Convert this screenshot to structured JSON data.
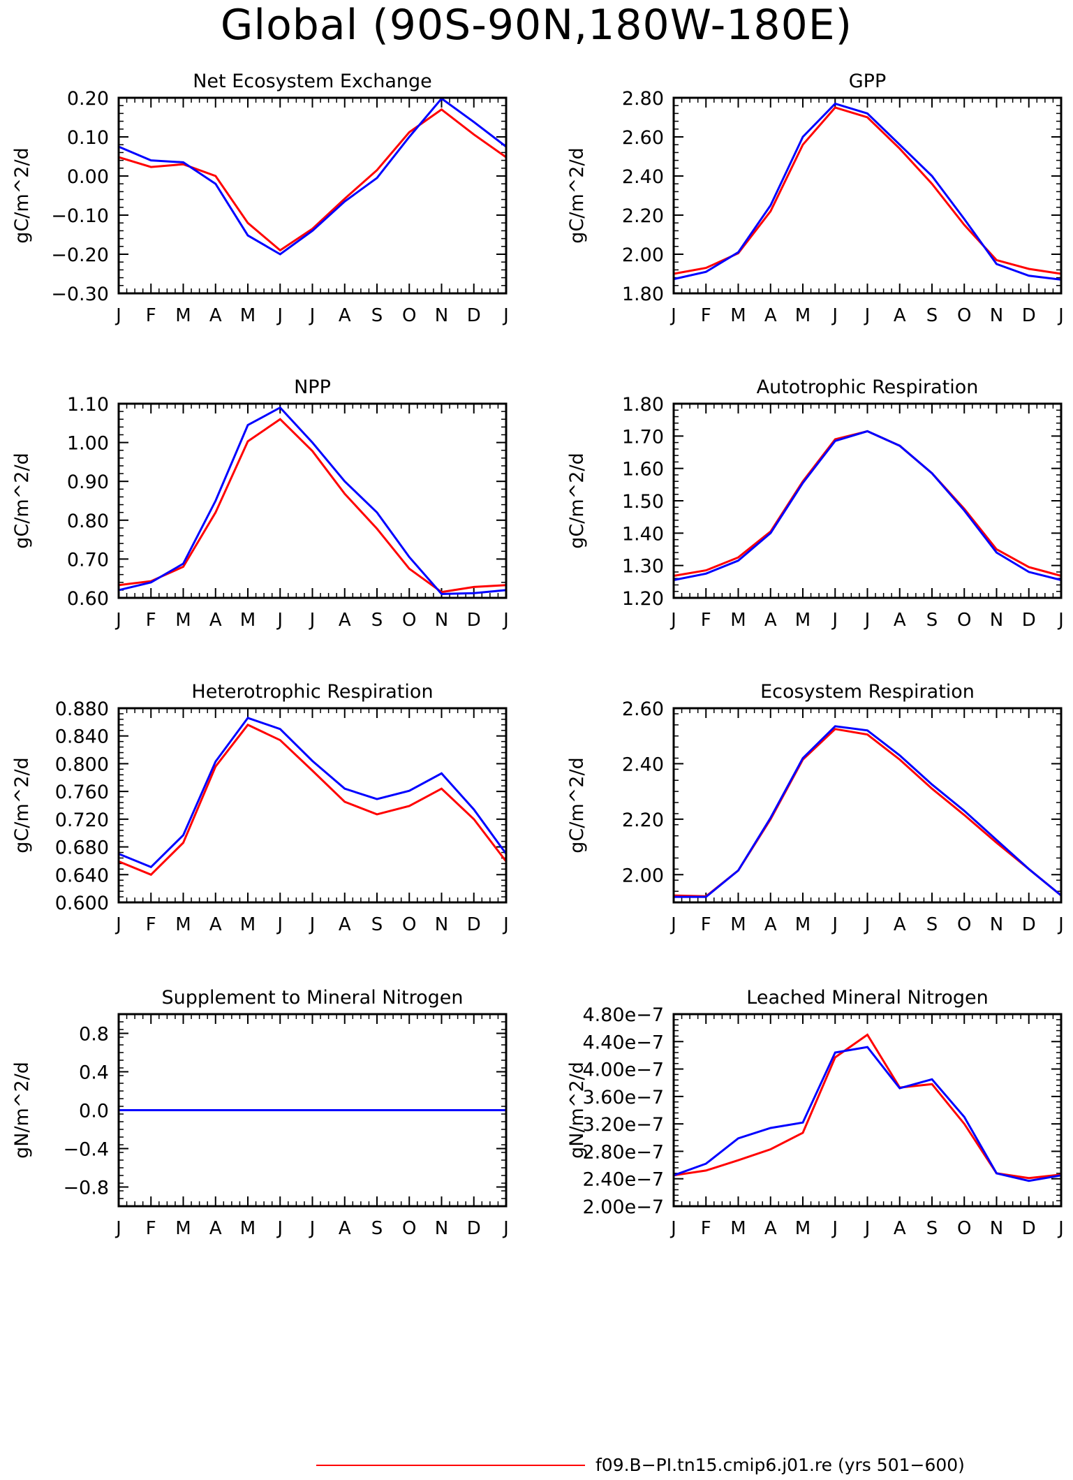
{
  "page": {
    "title": "Global (90S-90N,180W-180E)"
  },
  "legend": [
    {
      "label": "f09.B-PI.tn15.cmip6.j01.re (yrs 501-600)",
      "color": "#ff0000"
    }
  ],
  "colors": {
    "series_a": "#ff0000",
    "series_b": "#0000ff"
  },
  "chart_data": [
    {
      "type": "line",
      "title": "Net Ecosystem Exchange",
      "ylabel": "gC/m^2/d",
      "categories": [
        "J",
        "F",
        "M",
        "A",
        "M",
        "J",
        "J",
        "A",
        "S",
        "O",
        "N",
        "D",
        "J"
      ],
      "ylim": [
        -0.3,
        0.2
      ],
      "yticks": [
        {
          "v": -0.3,
          "label": "-0.30"
        },
        {
          "v": -0.2,
          "label": "-0.20"
        },
        {
          "v": -0.1,
          "label": "-0.10"
        },
        {
          "v": 0.0,
          "label": "0.00"
        },
        {
          "v": 0.1,
          "label": "0.10"
        },
        {
          "v": 0.2,
          "label": "0.20"
        }
      ],
      "series": [
        {
          "values": [
            0.048,
            0.023,
            0.03,
            0.0,
            -0.12,
            -0.19,
            -0.135,
            -0.058,
            0.015,
            0.112,
            0.17,
            0.106,
            0.048
          ]
        },
        {
          "values": [
            0.075,
            0.04,
            0.035,
            -0.02,
            -0.152,
            -0.2,
            -0.14,
            -0.065,
            -0.005,
            0.1,
            0.198,
            0.138,
            0.075
          ]
        }
      ]
    },
    {
      "type": "line",
      "title": "GPP",
      "ylabel": "gC/m^2/d",
      "categories": [
        "J",
        "F",
        "M",
        "A",
        "M",
        "J",
        "J",
        "A",
        "S",
        "O",
        "N",
        "D",
        "J"
      ],
      "ylim": [
        1.8,
        2.8
      ],
      "yticks": [
        {
          "v": 1.8,
          "label": "1.80"
        },
        {
          "v": 2.0,
          "label": "2.00"
        },
        {
          "v": 2.2,
          "label": "2.20"
        },
        {
          "v": 2.4,
          "label": "2.40"
        },
        {
          "v": 2.6,
          "label": "2.60"
        },
        {
          "v": 2.8,
          "label": "2.80"
        }
      ],
      "series": [
        {
          "values": [
            1.9,
            1.93,
            2.005,
            2.22,
            2.56,
            2.75,
            2.7,
            2.54,
            2.36,
            2.15,
            1.97,
            1.925,
            1.9
          ]
        },
        {
          "values": [
            1.873,
            1.91,
            2.01,
            2.25,
            2.6,
            2.77,
            2.72,
            2.56,
            2.4,
            2.18,
            1.95,
            1.89,
            1.87
          ]
        }
      ]
    },
    {
      "type": "line",
      "title": "NPP",
      "ylabel": "gC/m^2/d",
      "categories": [
        "J",
        "F",
        "M",
        "A",
        "M",
        "J",
        "J",
        "A",
        "S",
        "O",
        "N",
        "D",
        "J"
      ],
      "ylim": [
        0.6,
        1.1
      ],
      "yticks": [
        {
          "v": 0.6,
          "label": "0.60"
        },
        {
          "v": 0.7,
          "label": "0.70"
        },
        {
          "v": 0.8,
          "label": "0.80"
        },
        {
          "v": 0.9,
          "label": "0.90"
        },
        {
          "v": 1.0,
          "label": "1.00"
        },
        {
          "v": 1.1,
          "label": "1.10"
        }
      ],
      "series": [
        {
          "values": [
            0.633,
            0.643,
            0.68,
            0.82,
            1.003,
            1.06,
            0.978,
            0.868,
            0.778,
            0.675,
            0.615,
            0.628,
            0.633
          ]
        },
        {
          "values": [
            0.62,
            0.64,
            0.688,
            0.85,
            1.045,
            1.09,
            1.0,
            0.9,
            0.82,
            0.705,
            0.61,
            0.612,
            0.62
          ]
        }
      ]
    },
    {
      "type": "line",
      "title": "Autotrophic Respiration",
      "ylabel": "gC/m^2/d",
      "categories": [
        "J",
        "F",
        "M",
        "A",
        "M",
        "J",
        "J",
        "A",
        "S",
        "O",
        "N",
        "D",
        "J"
      ],
      "ylim": [
        1.2,
        1.8
      ],
      "yticks": [
        {
          "v": 1.2,
          "label": "1.20"
        },
        {
          "v": 1.3,
          "label": "1.30"
        },
        {
          "v": 1.4,
          "label": "1.40"
        },
        {
          "v": 1.5,
          "label": "1.50"
        },
        {
          "v": 1.6,
          "label": "1.60"
        },
        {
          "v": 1.7,
          "label": "1.70"
        },
        {
          "v": 1.8,
          "label": "1.80"
        }
      ],
      "series": [
        {
          "values": [
            1.268,
            1.285,
            1.325,
            1.405,
            1.56,
            1.69,
            1.715,
            1.67,
            1.585,
            1.475,
            1.35,
            1.295,
            1.268
          ]
        },
        {
          "values": [
            1.255,
            1.275,
            1.315,
            1.4,
            1.555,
            1.685,
            1.715,
            1.67,
            1.585,
            1.47,
            1.34,
            1.28,
            1.255
          ]
        }
      ]
    },
    {
      "type": "line",
      "title": "Heterotrophic Respiration",
      "ylabel": "gC/m^2/d",
      "categories": [
        "J",
        "F",
        "M",
        "A",
        "M",
        "J",
        "J",
        "A",
        "S",
        "O",
        "N",
        "D",
        "J"
      ],
      "ylim": [
        0.6,
        0.88
      ],
      "yticks": [
        {
          "v": 0.6,
          "label": "0.600"
        },
        {
          "v": 0.64,
          "label": "0.640"
        },
        {
          "v": 0.68,
          "label": "0.680"
        },
        {
          "v": 0.72,
          "label": "0.720"
        },
        {
          "v": 0.76,
          "label": "0.760"
        },
        {
          "v": 0.8,
          "label": "0.800"
        },
        {
          "v": 0.84,
          "label": "0.840"
        },
        {
          "v": 0.88,
          "label": "0.880"
        }
      ],
      "series": [
        {
          "values": [
            0.659,
            0.64,
            0.686,
            0.796,
            0.856,
            0.834,
            0.79,
            0.745,
            0.727,
            0.739,
            0.764,
            0.72,
            0.659
          ]
        },
        {
          "values": [
            0.67,
            0.651,
            0.697,
            0.803,
            0.866,
            0.85,
            0.804,
            0.764,
            0.749,
            0.761,
            0.786,
            0.734,
            0.67
          ]
        }
      ]
    },
    {
      "type": "line",
      "title": "Ecosystem Respiration",
      "ylabel": "gC/m^2/d",
      "categories": [
        "J",
        "F",
        "M",
        "A",
        "M",
        "J",
        "J",
        "A",
        "S",
        "O",
        "N",
        "D",
        "J"
      ],
      "ylim": [
        1.9,
        2.6
      ],
      "yticks": [
        {
          "v": 2.0,
          "label": "2.00"
        },
        {
          "v": 2.2,
          "label": "2.20"
        },
        {
          "v": 2.4,
          "label": "2.40"
        },
        {
          "v": 2.6,
          "label": "2.60"
        }
      ],
      "series": [
        {
          "values": [
            1.925,
            1.922,
            2.015,
            2.2,
            2.415,
            2.525,
            2.505,
            2.415,
            2.31,
            2.215,
            2.115,
            2.02,
            1.925
          ]
        },
        {
          "values": [
            1.92,
            1.92,
            2.015,
            2.205,
            2.42,
            2.535,
            2.52,
            2.43,
            2.325,
            2.23,
            2.125,
            2.02,
            1.925
          ]
        }
      ]
    },
    {
      "type": "line",
      "title": "Supplement to Mineral Nitrogen",
      "ylabel": "gN/m^2/d",
      "categories": [
        "J",
        "F",
        "M",
        "A",
        "M",
        "J",
        "J",
        "A",
        "S",
        "O",
        "N",
        "D",
        "J"
      ],
      "ylim": [
        -1.0,
        1.0
      ],
      "yticks": [
        {
          "v": -0.8,
          "label": "-0.8"
        },
        {
          "v": -0.4,
          "label": "-0.4"
        },
        {
          "v": 0.0,
          "label": "0.0"
        },
        {
          "v": 0.4,
          "label": "0.4"
        },
        {
          "v": 0.8,
          "label": "0.8"
        }
      ],
      "series": [
        {
          "values": [
            0,
            0,
            0,
            0,
            0,
            0,
            0,
            0,
            0,
            0,
            0,
            0,
            0
          ]
        },
        {
          "values": [
            0,
            0,
            0,
            0,
            0,
            0,
            0,
            0,
            0,
            0,
            0,
            0,
            0
          ]
        }
      ]
    },
    {
      "type": "line",
      "title": "Leached Mineral Nitrogen",
      "ylabel": "gN/m^2/d",
      "categories": [
        "J",
        "F",
        "M",
        "A",
        "M",
        "J",
        "J",
        "A",
        "S",
        "O",
        "N",
        "D",
        "J"
      ],
      "ylim": [
        2e-07,
        4.8e-07
      ],
      "yticks": [
        {
          "v": 2e-07,
          "label": "2.00e-7"
        },
        {
          "v": 2.4e-07,
          "label": "2.40e-7"
        },
        {
          "v": 2.8e-07,
          "label": "2.80e-7"
        },
        {
          "v": 3.2e-07,
          "label": "3.20e-7"
        },
        {
          "v": 3.6e-07,
          "label": "3.60e-7"
        },
        {
          "v": 4e-07,
          "label": "4.00e-7"
        },
        {
          "v": 4.4e-07,
          "label": "4.40e-7"
        },
        {
          "v": 4.8e-07,
          "label": "4.80e-7"
        }
      ],
      "series": [
        {
          "values": [
            2.45e-07,
            2.52e-07,
            2.67e-07,
            2.83e-07,
            3.07e-07,
            4.17e-07,
            4.5e-07,
            3.73e-07,
            3.78e-07,
            3.2e-07,
            2.48e-07,
            2.41e-07,
            2.46e-07
          ]
        },
        {
          "values": [
            2.45e-07,
            2.62e-07,
            2.99e-07,
            3.14e-07,
            3.22e-07,
            4.24e-07,
            4.32e-07,
            3.72e-07,
            3.85e-07,
            3.3e-07,
            2.48e-07,
            2.37e-07,
            2.45e-07
          ]
        }
      ]
    }
  ]
}
